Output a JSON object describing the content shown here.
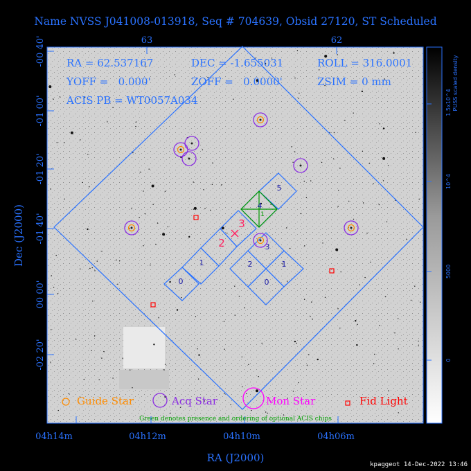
{
  "title": "Name NVSS J041008-013918, Seq # 704639, Obsid 27120, ST Scheduled",
  "info": {
    "ra": "RA = 62.537167",
    "dec": "DEC = -1.655031",
    "roll": "ROLL = 316.0001",
    "yoff": "YOFF =   0.000'",
    "zoff": "ZOFF =   0.0000'",
    "zsim": "ZSIM = 0 mm",
    "acis": "ACIS PB = WT0057A034"
  },
  "chart_data": {
    "type": "scatter",
    "xlabel": "RA (J2000)",
    "ylabel": "Dec (J2000)",
    "x_ticks_bottom": [
      "04h14m",
      "04h12m",
      "04h10m",
      "04h06m"
    ],
    "x_ticks_top": [
      "63",
      "62"
    ],
    "y_ticks": [
      "-00 40'",
      "-01 00'",
      "-01 20'",
      "-01 40'",
      "00 00'",
      "-02 20'"
    ],
    "colorbar": {
      "label": "PUSS scaled density",
      "ticks": [
        "1.5x10^4",
        "10^4",
        "5000",
        "0"
      ]
    },
    "chips": {
      "acis_s": [
        "0",
        "1",
        "2",
        "3"
      ],
      "acis_i": [
        "0",
        "1",
        "2",
        "3"
      ],
      "optional": [
        "4",
        "5"
      ],
      "optional_order": [
        "1"
      ]
    },
    "guide_acq_stars": 6,
    "acq_only_stars": 4,
    "fid_lights": 4
  },
  "legend": {
    "guide": "Guide Star",
    "acq": "Acq Star",
    "mon": "Mon Star",
    "fid": "Fid Light",
    "note": "Green denotes presence and ordering of optional ACIS chips"
  },
  "footer": "kpaggeot 14-Dec-2022 13:46",
  "colors": {
    "axis": "#2a72ff",
    "guide": "#ff8c00",
    "acq": "#8a2be2",
    "mon": "#ff00ff",
    "fid": "#ff0000",
    "optional": "#009900"
  }
}
